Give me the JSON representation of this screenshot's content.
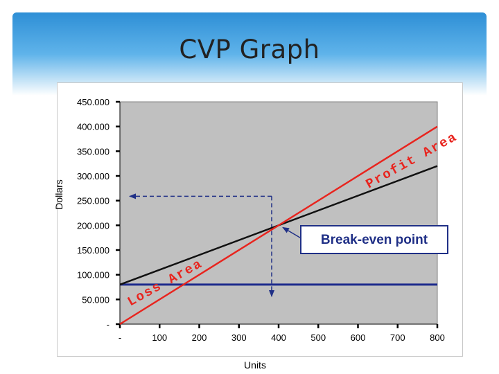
{
  "slide": {
    "title": "CVP Graph"
  },
  "chart_data": {
    "type": "line",
    "title": "",
    "xlabel": "Units",
    "ylabel": "Dollars",
    "xlim": [
      0,
      800
    ],
    "ylim": [
      0,
      450000
    ],
    "x_ticks": [
      0,
      100,
      200,
      300,
      400,
      500,
      600,
      700,
      800
    ],
    "x_tick_labels": [
      "-",
      "100",
      "200",
      "300",
      "400",
      "500",
      "600",
      "700",
      "800"
    ],
    "y_ticks": [
      450000,
      400000,
      350000,
      300000,
      250000,
      200000,
      150000,
      100000,
      50000,
      0
    ],
    "y_tick_labels": [
      "450.000",
      "400.000",
      "350.000",
      "300.000",
      "250.000",
      "200.000",
      "150.000",
      "100.000",
      "50.000",
      "-"
    ],
    "grid": false,
    "plot_background": "#c0c0c0",
    "series": [
      {
        "key": "fixed",
        "color": "#1c2a8c",
        "x": [
          0,
          800
        ],
        "y": [
          80000,
          80000
        ]
      },
      {
        "key": "total_cost",
        "color": "#111111",
        "x": [
          0,
          800
        ],
        "y": [
          80000,
          320000
        ]
      },
      {
        "key": "revenue",
        "color": "#e8241e",
        "x": [
          0,
          800
        ],
        "y": [
          0,
          400000
        ]
      }
    ],
    "break_even": {
      "units": 400,
      "dollars": 200000
    },
    "annotations": {
      "profit_area": "Profit Area",
      "loss_area": "Loss Area",
      "break_even_point": "Break-even point"
    }
  }
}
